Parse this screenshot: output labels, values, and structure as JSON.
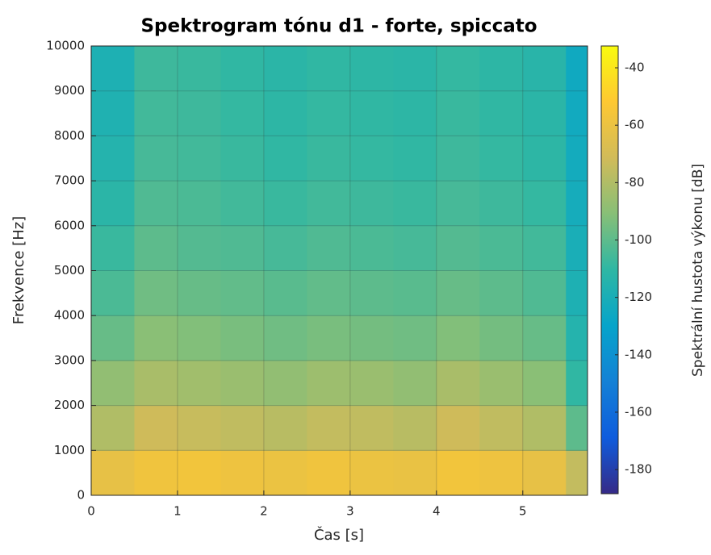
{
  "chart_data": {
    "type": "heatmap",
    "title": "Spektrogram tónu d1 - forte, spiccato",
    "xlabel": "Čas [s]",
    "ylabel": "Frekvence [Hz]",
    "colorbar_label": "Spektrální hustota výkonu [dB]",
    "x_edges": [
      0,
      0.5,
      1,
      1.5,
      2,
      2.5,
      3,
      3.5,
      4,
      4.5,
      5,
      5.5,
      5.75
    ],
    "y_edges": [
      0,
      1000,
      2000,
      3000,
      4000,
      5000,
      6000,
      7000,
      8000,
      9000,
      10000
    ],
    "values": [
      [
        -62,
        -58,
        -57,
        -59,
        -60,
        -58,
        -60,
        -61,
        -57,
        -59,
        -62,
        -75
      ],
      [
        -80,
        -72,
        -74,
        -76,
        -78,
        -75,
        -76,
        -78,
        -72,
        -76,
        -80,
        -100
      ],
      [
        -88,
        -82,
        -84,
        -86,
        -88,
        -85,
        -86,
        -88,
        -82,
        -86,
        -90,
        -110
      ],
      [
        -98,
        -90,
        -92,
        -94,
        -96,
        -94,
        -95,
        -96,
        -92,
        -95,
        -98,
        -115
      ],
      [
        -104,
        -96,
        -98,
        -99,
        -101,
        -99,
        -100,
        -101,
        -98,
        -100,
        -103,
        -118
      ],
      [
        -108,
        -100,
        -102,
        -103,
        -105,
        -103,
        -104,
        -105,
        -102,
        -104,
        -106,
        -120
      ],
      [
        -112,
        -103,
        -104,
        -106,
        -108,
        -106,
        -107,
        -108,
        -105,
        -107,
        -109,
        -122
      ],
      [
        -115,
        -105,
        -106,
        -108,
        -110,
        -108,
        -109,
        -110,
        -107,
        -109,
        -111,
        -123
      ],
      [
        -117,
        -106,
        -107,
        -109,
        -111,
        -109,
        -110,
        -111,
        -108,
        -110,
        -112,
        -124
      ],
      [
        -118,
        -107,
        -108,
        -110,
        -112,
        -110,
        -111,
        -112,
        -109,
        -111,
        -113,
        -125
      ]
    ],
    "xlim": [
      0,
      5.75
    ],
    "ylim": [
      0,
      10000
    ],
    "xticks": [
      0,
      1,
      2,
      3,
      4,
      5
    ],
    "yticks": [
      0,
      1000,
      2000,
      3000,
      4000,
      5000,
      6000,
      7000,
      8000,
      9000,
      10000
    ],
    "clim": [
      -188.4,
      -32.4
    ],
    "cticks": [
      -180,
      -160,
      -140,
      -120,
      -100,
      -80,
      -60,
      -40
    ],
    "colormap": [
      "#352a87",
      "#0f5cdd",
      "#1481d6",
      "#06a4ca",
      "#2eb7a4",
      "#87bf77",
      "#d1bb59",
      "#fec832",
      "#f9fb0e"
    ],
    "grid": true
  }
}
